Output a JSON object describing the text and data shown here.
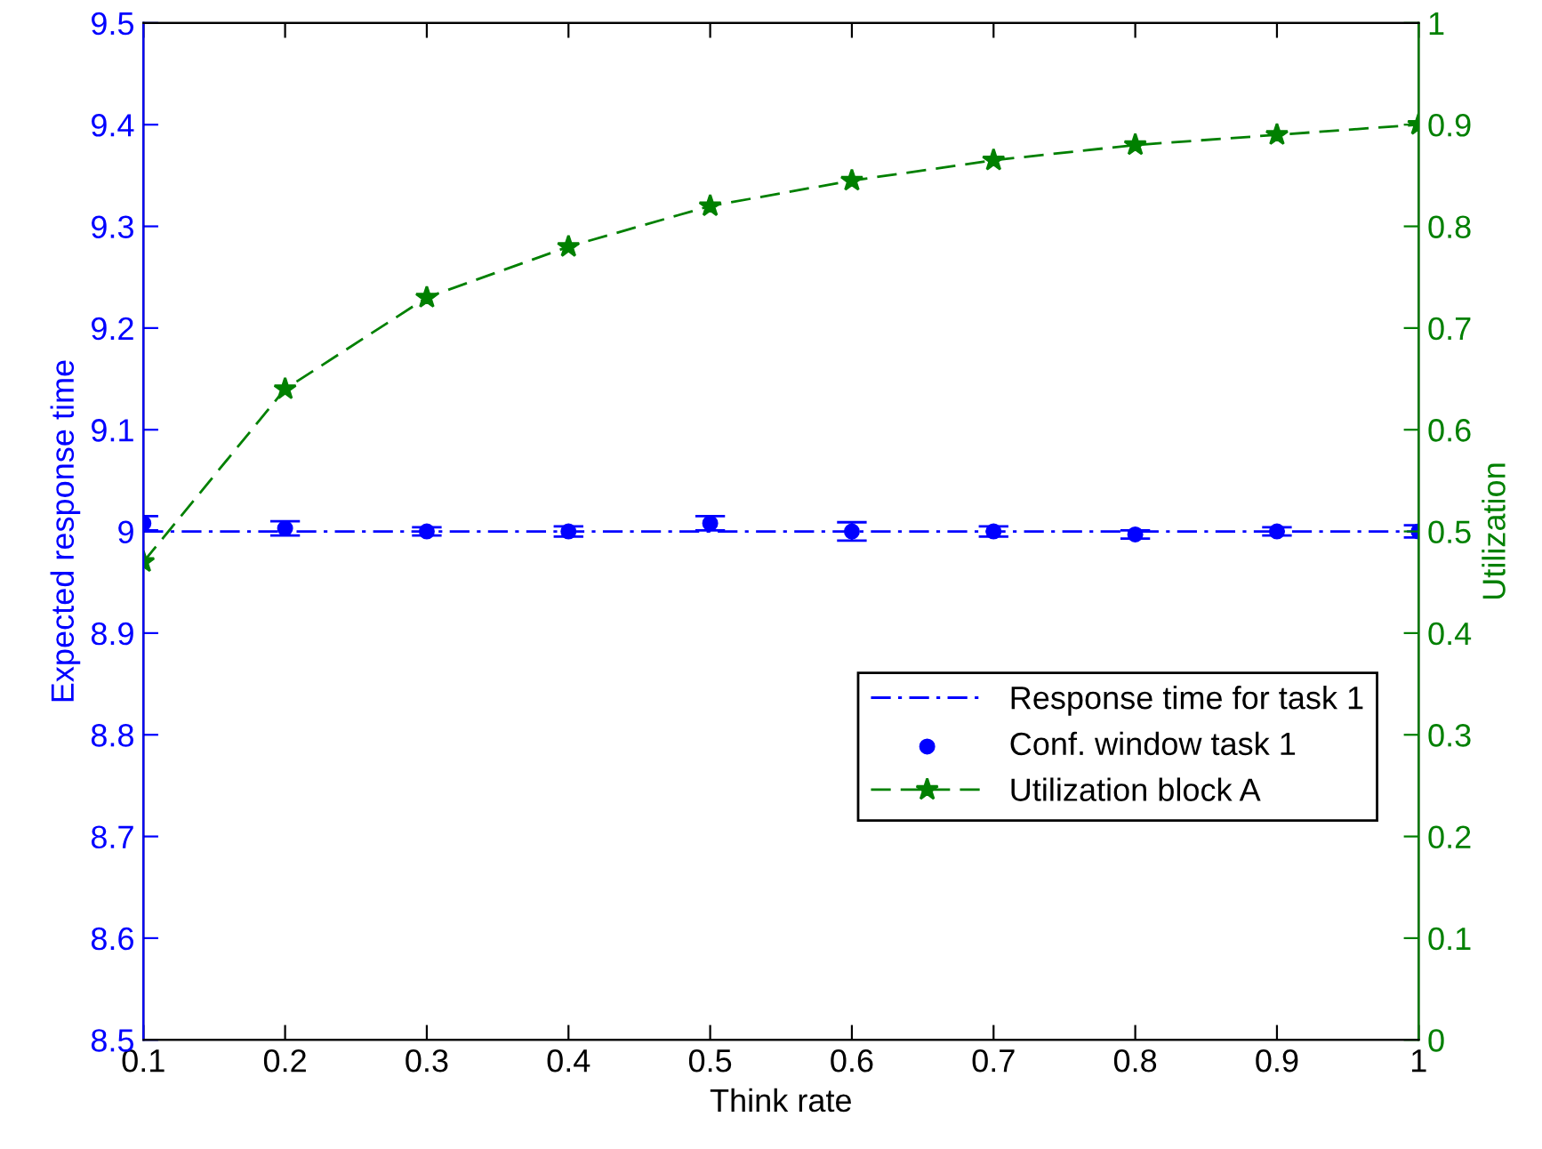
{
  "chart_data": {
    "type": "line",
    "xlabel": "Think rate",
    "ylabel": "Expected response time",
    "y2label": "Utilization",
    "x": [
      0.1,
      0.2,
      0.3,
      0.4,
      0.5,
      0.6,
      0.7,
      0.8,
      0.9,
      1
    ],
    "xlim": [
      0.1,
      1
    ],
    "xticks": [
      0.1,
      0.2,
      0.3,
      0.4,
      0.5,
      0.6,
      0.7,
      0.8,
      0.9,
      1
    ],
    "ylim": [
      8.5,
      9.5
    ],
    "yticks": [
      8.5,
      8.6,
      8.7,
      8.8,
      8.9,
      9,
      9.1,
      9.2,
      9.3,
      9.4,
      9.5
    ],
    "y2lim": [
      0,
      1
    ],
    "y2ticks": [
      0,
      0.1,
      0.2,
      0.3,
      0.4,
      0.5,
      0.6,
      0.7,
      0.8,
      0.9,
      1
    ],
    "legend": "bottom right",
    "grid": false,
    "series": [
      {
        "name": "Response time for task 1",
        "color": "#0000ff",
        "line_style": "dashdot",
        "marker": "none",
        "values": [
          9,
          9,
          9,
          9,
          9,
          9,
          9,
          9,
          9,
          9
        ]
      },
      {
        "name": "Conf. window task 1",
        "type": "scatter",
        "color": "#0000ff",
        "marker": "circle",
        "values": [
          9.008,
          9.003,
          9.0,
          9.0,
          9.008,
          9.0,
          9.0,
          8.997,
          9.0,
          9.0
        ],
        "errors": [
          0.007,
          0.007,
          0.004,
          0.005,
          0.007,
          0.009,
          0.005,
          0.004,
          0.004,
          0.006
        ]
      },
      {
        "name": "Utilization block A",
        "axis": "y2",
        "color": "#008000",
        "line_style": "dashed",
        "marker": "star",
        "values": [
          0.47,
          0.64,
          0.73,
          0.78,
          0.82,
          0.845,
          0.865,
          0.88,
          0.89,
          0.9
        ]
      }
    ]
  }
}
